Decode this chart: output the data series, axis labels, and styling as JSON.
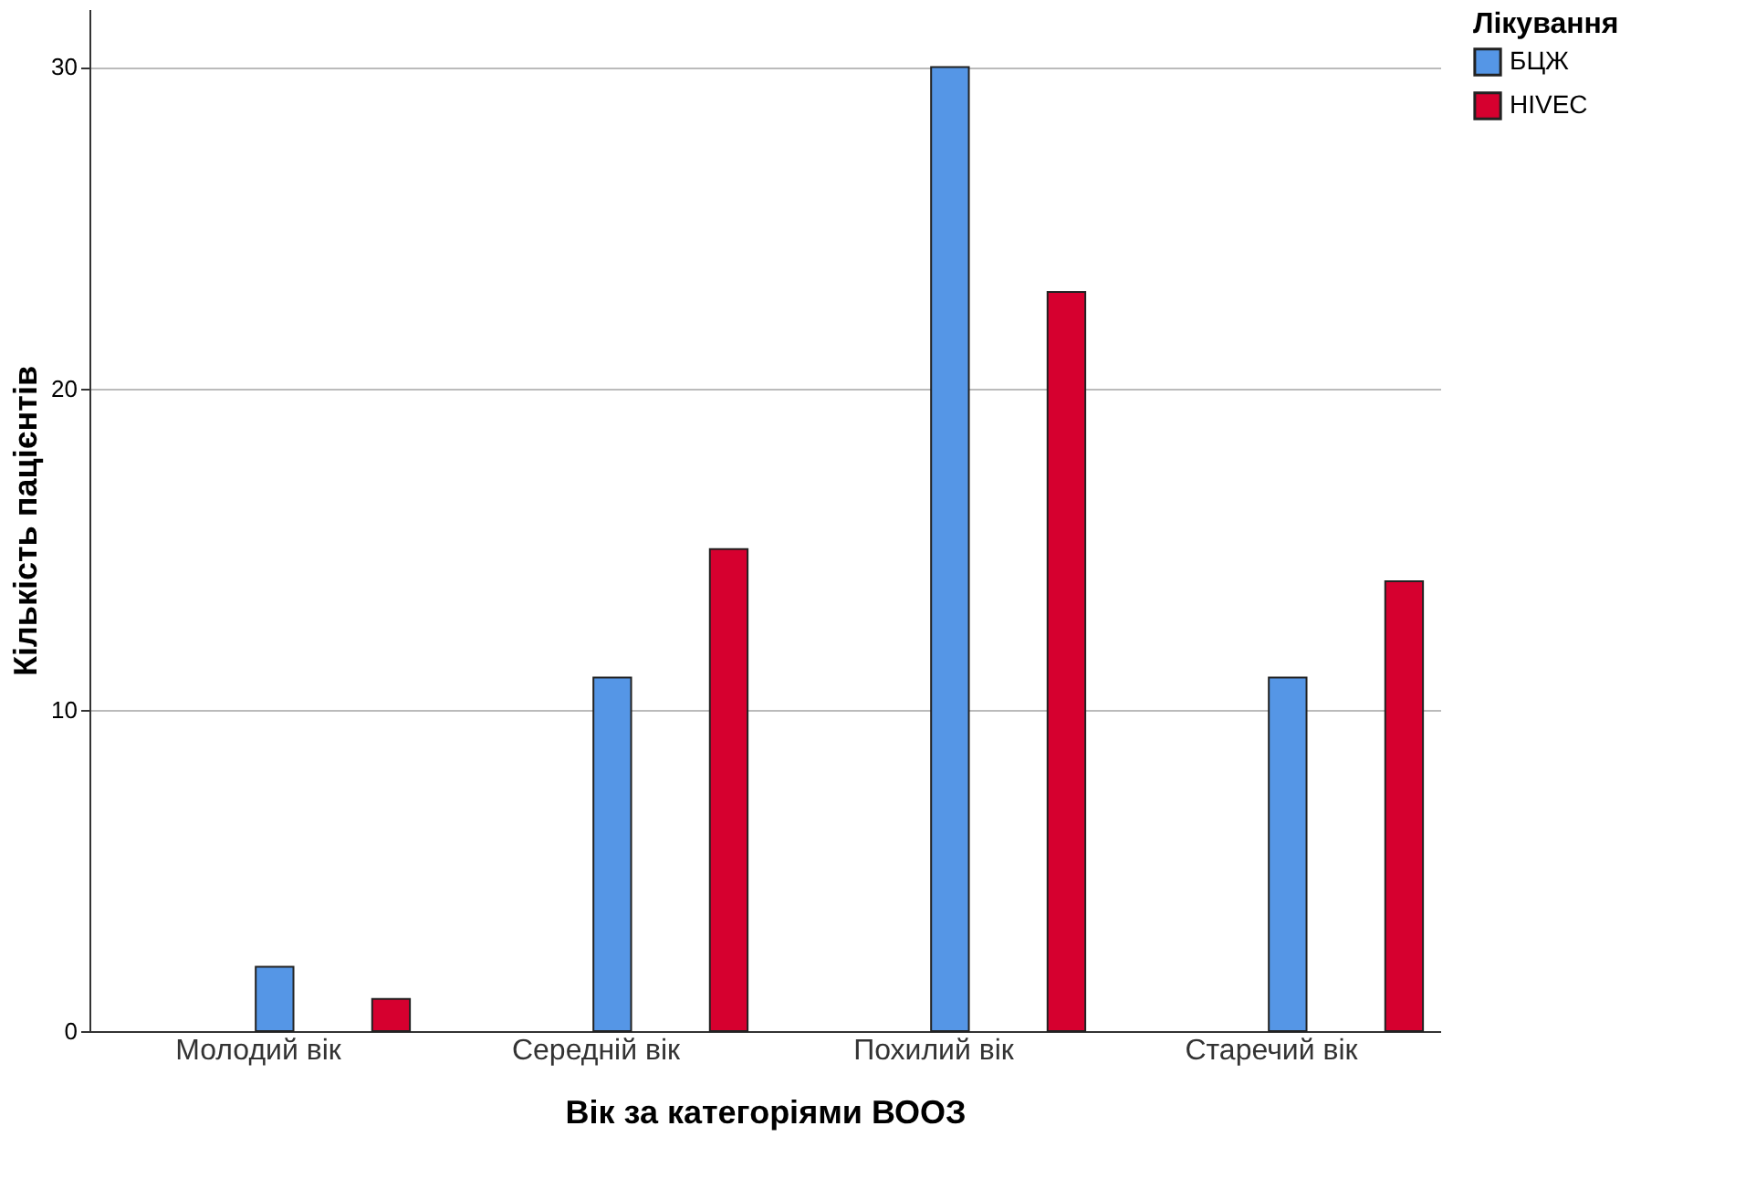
{
  "chart_data": {
    "type": "bar",
    "xlabel": "Вік за категоріями ВООЗ",
    "ylabel": "Кількість пацієнтів",
    "legend_title": "Лікування",
    "categories": [
      "Молодий вік",
      "Середній вік",
      "Похилий вік",
      "Старечий вік"
    ],
    "series": [
      {
        "name": "БЦЖ",
        "color": "#5596e6",
        "values": [
          2,
          11,
          30,
          11
        ]
      },
      {
        "name": "HIVEC",
        "color": "#d6002f",
        "values": [
          1,
          15,
          23,
          14
        ]
      }
    ],
    "ylim": [
      0,
      31.8
    ],
    "yticks": [
      0,
      10,
      20,
      30
    ],
    "grid": "y",
    "legend": "top right"
  }
}
